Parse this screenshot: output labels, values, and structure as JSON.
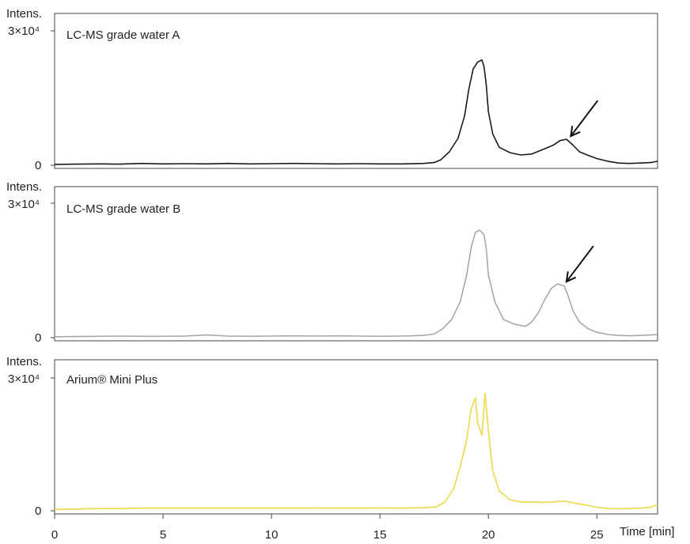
{
  "chart_data": [
    {
      "type": "line",
      "label": "LC-MS grade water A",
      "ylabel": "Intens.",
      "ytick_top": "3×10⁴",
      "ytick_zero": "0",
      "color": "#1a1a1a",
      "ylim": [
        0,
        30000
      ],
      "xlim": [
        0,
        27.8
      ],
      "annotation": {
        "type": "arrow",
        "target_x": 23.8,
        "target_y": 6500
      },
      "series": [
        {
          "x": [
            0,
            1,
            2,
            3,
            4,
            5,
            6,
            7,
            8,
            9,
            10,
            11,
            12,
            13,
            14,
            15,
            16,
            17,
            17.5,
            17.8,
            18.2,
            18.6,
            18.9,
            19.1,
            19.3,
            19.5,
            19.7,
            19.8,
            19.9,
            20.0,
            20.2,
            20.5,
            21.0,
            21.5,
            22.0,
            22.5,
            23.0,
            23.3,
            23.6,
            23.9,
            24.2,
            24.6,
            25.0,
            25.5,
            26.0,
            26.5,
            27.0,
            27.5,
            27.8
          ],
          "y": [
            200,
            250,
            300,
            250,
            400,
            300,
            350,
            300,
            400,
            300,
            350,
            400,
            350,
            300,
            350,
            300,
            300,
            400,
            600,
            1200,
            3000,
            6000,
            11000,
            17000,
            21500,
            23000,
            23500,
            22000,
            18000,
            12000,
            7000,
            4000,
            2800,
            2300,
            2500,
            3500,
            4500,
            5500,
            5800,
            4500,
            3000,
            2200,
            1500,
            900,
            500,
            400,
            500,
            600,
            900
          ]
        }
      ]
    },
    {
      "type": "line",
      "label": "LC-MS grade water B",
      "ylabel": "Intens.",
      "ytick_top": "3×10⁴",
      "ytick_zero": "0",
      "color": "#a6a8ad",
      "ylim": [
        0,
        30000
      ],
      "xlim": [
        0,
        27.8
      ],
      "annotation": {
        "type": "arrow",
        "target_x": 23.6,
        "target_y": 12500
      },
      "series": [
        {
          "x": [
            0,
            1,
            2,
            3,
            4,
            5,
            6,
            7,
            8,
            9,
            10,
            11,
            12,
            13,
            14,
            15,
            16,
            17,
            17.5,
            17.9,
            18.3,
            18.7,
            19.0,
            19.2,
            19.4,
            19.6,
            19.8,
            19.9,
            20.0,
            20.3,
            20.7,
            21.2,
            21.7,
            22.0,
            22.3,
            22.6,
            22.9,
            23.2,
            23.5,
            23.7,
            23.9,
            24.2,
            24.6,
            25.0,
            25.5,
            26.0,
            26.5,
            27.0,
            27.5,
            27.8
          ],
          "y": [
            200,
            250,
            300,
            350,
            300,
            300,
            350,
            600,
            350,
            300,
            350,
            400,
            350,
            400,
            350,
            300,
            350,
            500,
            800,
            2000,
            4000,
            8000,
            14000,
            20000,
            23500,
            24000,
            23000,
            20000,
            14000,
            8000,
            4000,
            3000,
            2500,
            3500,
            5500,
            8500,
            11000,
            12000,
            11500,
            9000,
            6000,
            3500,
            2000,
            1200,
            700,
            500,
            400,
            500,
            600,
            700
          ]
        }
      ]
    },
    {
      "type": "line",
      "label": "Arium® Mini Plus",
      "ylabel": "Intens.",
      "ytick_top": "3×10⁴",
      "ytick_zero": "0",
      "color": "#e8dc4a",
      "ylim": [
        0,
        30000
      ],
      "xlim": [
        0,
        27.8
      ],
      "xticks": [
        "0",
        "5",
        "10",
        "15",
        "20",
        "25"
      ],
      "xtick_values": [
        0,
        5,
        10,
        15,
        20,
        25
      ],
      "xlabel": "Time [min]",
      "series": [
        {
          "x": [
            0,
            1,
            2,
            3,
            4,
            5,
            6,
            7,
            8,
            9,
            10,
            11,
            12,
            13,
            14,
            15,
            16,
            17,
            17.6,
            18.0,
            18.4,
            18.7,
            19.0,
            19.2,
            19.4,
            19.5,
            19.7,
            19.85,
            20.0,
            20.2,
            20.5,
            21.0,
            21.5,
            22.0,
            22.5,
            23.0,
            23.5,
            24.0,
            24.5,
            25.0,
            25.5,
            26.0,
            26.5,
            27.0,
            27.5,
            27.8
          ],
          "y": [
            300,
            400,
            500,
            500,
            600,
            600,
            600,
            600,
            600,
            600,
            600,
            600,
            650,
            600,
            600,
            650,
            600,
            700,
            900,
            2000,
            5000,
            10000,
            16000,
            23000,
            25500,
            20000,
            17000,
            26500,
            18000,
            9000,
            4500,
            2500,
            2000,
            2000,
            1900,
            2000,
            2200,
            1700,
            1300,
            800,
            500,
            450,
            500,
            600,
            800,
            1500
          ]
        }
      ]
    }
  ]
}
